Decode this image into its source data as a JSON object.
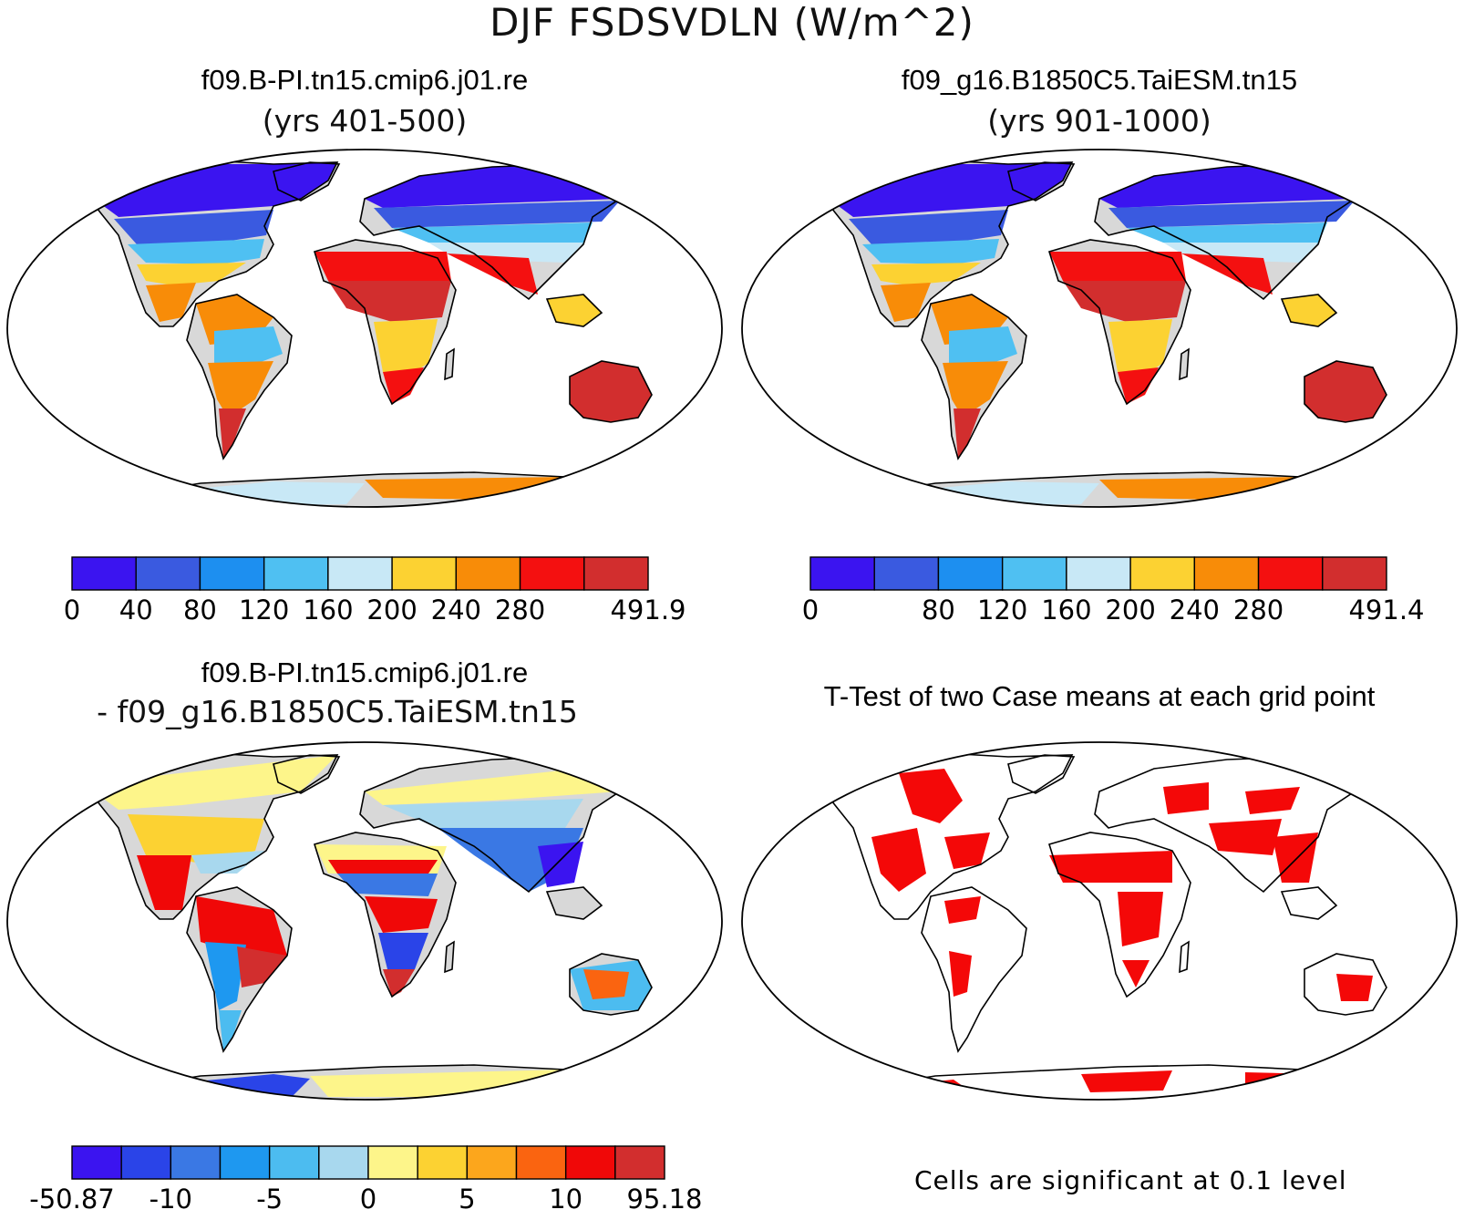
{
  "main_title": "DJF FSDSVDLN (W/m^2)",
  "colors": {
    "abs_palette": [
      "#3b14f0",
      "#3a5ae0",
      "#1d8ff0",
      "#4fc0f2",
      "#c8e8f6",
      "#fcd232",
      "#f88c08",
      "#f41010",
      "#d22e2e"
    ],
    "diff_palette": [
      "#3b14f0",
      "#2a44e8",
      "#3a78e4",
      "#1e98f0",
      "#4cbcf0",
      "#a8d8ee",
      "#fdf58a",
      "#fcd232",
      "#fca61c",
      "#fa6410",
      "#f00808",
      "#d22e2e"
    ],
    "land": "#d8d8d8",
    "coastline": "#000000",
    "significant": "#f40808"
  },
  "panels": [
    {
      "id": "case1",
      "title": "f09.B-PI.tn15.cmip6.j01.re",
      "subtitle": "(yrs 401-500)",
      "colorbar": {
        "labels": [
          "0",
          "40",
          "80",
          "120",
          "160",
          "200",
          "240",
          "280",
          "491.9"
        ],
        "label_positions": [
          0,
          1,
          2,
          3,
          4,
          5,
          6,
          7,
          9
        ]
      }
    },
    {
      "id": "case2",
      "title": "f09_g16.B1850C5.TaiESM.tn15",
      "subtitle": "(yrs 901-1000)",
      "colorbar": {
        "labels": [
          "0",
          "80",
          "120",
          "160",
          "200",
          "240",
          "280",
          "491.4"
        ],
        "label_positions": [
          0,
          2,
          3,
          4,
          5,
          6,
          7,
          9
        ]
      }
    },
    {
      "id": "diff",
      "title": "f09.B-PI.tn15.cmip6.j01.re",
      "subtitle": "- f09_g16.B1850C5.TaiESM.tn15",
      "colorbar": {
        "labels": [
          "-50.87",
          "-10",
          "-5",
          "0",
          "5",
          "10",
          "95.18"
        ],
        "label_positions": [
          0,
          2,
          4,
          6,
          8,
          10,
          12
        ]
      }
    },
    {
      "id": "ttest",
      "title": "T-Test of two Case means at each grid point",
      "note": "Cells are significant at 0.1 level"
    }
  ]
}
